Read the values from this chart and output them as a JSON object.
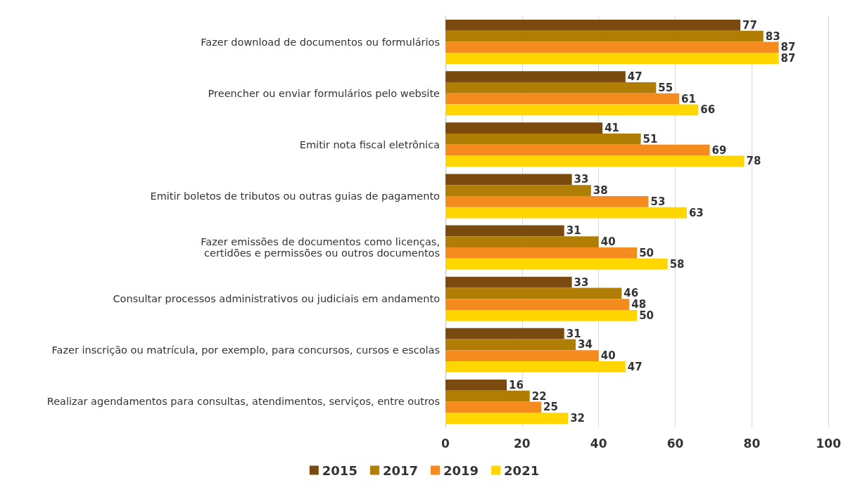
{
  "chart_data": {
    "type": "bar",
    "orientation": "horizontal",
    "categories": [
      "Fazer download de documentos ou formulários",
      "Preencher ou enviar formulários pelo website",
      "Emitir nota fiscal eletrônica",
      "Emitir boletos de tributos ou outras guias de pagamento",
      "Fazer emissões de documentos como licenças,\ncertidões e permissões ou outros documentos",
      "Consultar processos administrativos ou judiciais em andamento",
      "Fazer inscrição ou matrícula, por exemplo, para concursos, cursos e escolas",
      "Realizar agendamentos para consultas, atendimentos, serviços, entre outros"
    ],
    "series": [
      {
        "name": "2015",
        "color": "#7b4a0e",
        "values": [
          77,
          47,
          41,
          33,
          31,
          33,
          31,
          16
        ]
      },
      {
        "name": "2017",
        "color": "#b07d05",
        "values": [
          83,
          55,
          51,
          38,
          40,
          46,
          34,
          22
        ]
      },
      {
        "name": "2019",
        "color": "#f58a1f",
        "values": [
          87,
          61,
          69,
          53,
          50,
          48,
          40,
          25
        ]
      },
      {
        "name": "2021",
        "color": "#ffd600",
        "values": [
          87,
          66,
          78,
          63,
          58,
          50,
          47,
          32
        ]
      }
    ],
    "xlim": [
      0,
      100
    ],
    "xticks": [
      0,
      20,
      40,
      60,
      80,
      100
    ],
    "grid": "x",
    "legend": "bottom",
    "data_labels": true
  }
}
